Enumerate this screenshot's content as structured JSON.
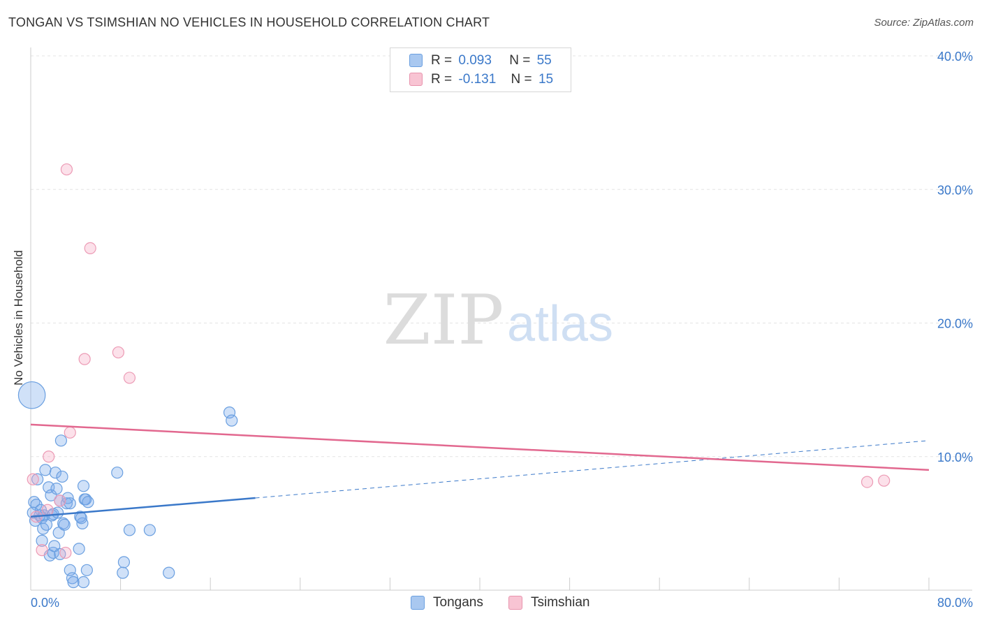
{
  "header": {
    "title": "TONGAN VS TSIMSHIAN NO VEHICLES IN HOUSEHOLD CORRELATION CHART",
    "source": "Source: ZipAtlas.com"
  },
  "watermark": {
    "zip": "ZIP",
    "atlas": "atlas"
  },
  "legend": {
    "rows": [
      {
        "r_label": "R =",
        "r_value": "0.093",
        "n_label": "N =",
        "n_value": "55",
        "color": "#a9c8f0",
        "border": "#6a9fe0"
      },
      {
        "r_label": "R =",
        "r_value": "-0.131",
        "n_label": "N =",
        "n_value": "15",
        "color": "#f8c4d3",
        "border": "#e893ad"
      }
    ]
  },
  "bottom_legend": [
    {
      "label": "Tongans",
      "color": "#a9c8f0",
      "border": "#6a9fe0"
    },
    {
      "label": "Tsimshian",
      "color": "#f8c4d3",
      "border": "#e893ad"
    }
  ],
  "colors": {
    "blue": "#3a78c9",
    "blue_fill": "rgba(120,170,235,0.35)",
    "blue_stroke": "#6a9fe0",
    "pink": "#e2688f",
    "pink_fill": "rgba(245,170,195,0.35)",
    "pink_stroke": "#ec9bb5",
    "grid": "#e3e3e3",
    "tick_label": "#3a78c9"
  },
  "chart_data": {
    "type": "scatter",
    "title": "TONGAN VS TSIMSHIAN NO VEHICLES IN HOUSEHOLD CORRELATION CHART",
    "xlabel": "",
    "ylabel": "No Vehicles in Household",
    "xlim": [
      0,
      80
    ],
    "ylim": [
      0,
      40
    ],
    "x_tick_labels": [
      "0.0%",
      "80.0%"
    ],
    "y_ticks": [
      10,
      20,
      30,
      40
    ],
    "y_tick_labels": [
      "10.0%",
      "20.0%",
      "30.0%",
      "40.0%"
    ],
    "grid": true,
    "legend_position": "top-center",
    "series": [
      {
        "name": "Tongans",
        "r": 0.093,
        "n": 55,
        "trend": {
          "x_start": 0.0,
          "y_start": 5.5,
          "x_solid_end": 20.0,
          "y_solid_end": 6.9,
          "x_end": 80.0,
          "y_end": 11.2
        },
        "points": [
          {
            "x": 0.1,
            "y": 14.6,
            "size": 2.4
          },
          {
            "x": 0.3,
            "y": 6.6
          },
          {
            "x": 0.5,
            "y": 6.4
          },
          {
            "x": 0.4,
            "y": 5.2
          },
          {
            "x": 0.6,
            "y": 8.3
          },
          {
            "x": 0.9,
            "y": 6.0
          },
          {
            "x": 1.0,
            "y": 5.4
          },
          {
            "x": 1.1,
            "y": 4.6
          },
          {
            "x": 1.2,
            "y": 5.6
          },
          {
            "x": 1.3,
            "y": 9.0
          },
          {
            "x": 1.4,
            "y": 4.9
          },
          {
            "x": 1.6,
            "y": 7.7
          },
          {
            "x": 1.7,
            "y": 2.6
          },
          {
            "x": 1.8,
            "y": 7.1
          },
          {
            "x": 1.9,
            "y": 5.6
          },
          {
            "x": 2.0,
            "y": 2.8
          },
          {
            "x": 2.1,
            "y": 3.3
          },
          {
            "x": 2.0,
            "y": 5.7
          },
          {
            "x": 2.2,
            "y": 8.8
          },
          {
            "x": 2.3,
            "y": 7.6
          },
          {
            "x": 2.4,
            "y": 5.8
          },
          {
            "x": 2.5,
            "y": 4.3
          },
          {
            "x": 2.6,
            "y": 2.7
          },
          {
            "x": 2.6,
            "y": 6.7
          },
          {
            "x": 2.7,
            "y": 11.2
          },
          {
            "x": 2.8,
            "y": 8.5
          },
          {
            "x": 2.9,
            "y": 5.0
          },
          {
            "x": 3.0,
            "y": 4.9
          },
          {
            "x": 3.2,
            "y": 6.5
          },
          {
            "x": 1.0,
            "y": 3.7
          },
          {
            "x": 3.3,
            "y": 6.9
          },
          {
            "x": 3.5,
            "y": 6.5
          },
          {
            "x": 3.5,
            "y": 1.5
          },
          {
            "x": 3.7,
            "y": 0.9
          },
          {
            "x": 3.8,
            "y": 0.6
          },
          {
            "x": 4.3,
            "y": 3.1
          },
          {
            "x": 4.6,
            "y": 5.0
          },
          {
            "x": 4.4,
            "y": 5.5
          },
          {
            "x": 4.5,
            "y": 5.4
          },
          {
            "x": 4.7,
            "y": 7.8
          },
          {
            "x": 4.7,
            "y": 0.6
          },
          {
            "x": 4.8,
            "y": 6.8
          },
          {
            "x": 4.9,
            "y": 6.8
          },
          {
            "x": 5.0,
            "y": 1.5
          },
          {
            "x": 5.1,
            "y": 6.6
          },
          {
            "x": 7.7,
            "y": 8.8
          },
          {
            "x": 8.2,
            "y": 1.3
          },
          {
            "x": 8.3,
            "y": 2.1
          },
          {
            "x": 8.8,
            "y": 4.5
          },
          {
            "x": 10.6,
            "y": 4.5
          },
          {
            "x": 12.3,
            "y": 1.3
          },
          {
            "x": 17.7,
            "y": 13.3
          },
          {
            "x": 17.9,
            "y": 12.7
          },
          {
            "x": 0.2,
            "y": 5.8
          },
          {
            "x": 0.8,
            "y": 5.6
          }
        ]
      },
      {
        "name": "Tsimshian",
        "r": -0.131,
        "n": 15,
        "trend": {
          "x_start": 0.0,
          "y_start": 12.4,
          "x_end": 80.0,
          "y_end": 9.0
        },
        "points": [
          {
            "x": 3.2,
            "y": 31.5
          },
          {
            "x": 5.3,
            "y": 25.6
          },
          {
            "x": 4.8,
            "y": 17.3
          },
          {
            "x": 7.8,
            "y": 17.8
          },
          {
            "x": 8.8,
            "y": 15.9
          },
          {
            "x": 3.5,
            "y": 11.8
          },
          {
            "x": 1.6,
            "y": 10.0
          },
          {
            "x": 0.2,
            "y": 8.3
          },
          {
            "x": 1.5,
            "y": 6.0
          },
          {
            "x": 0.5,
            "y": 5.5
          },
          {
            "x": 2.6,
            "y": 6.7
          },
          {
            "x": 1.0,
            "y": 3.0
          },
          {
            "x": 3.1,
            "y": 2.8
          },
          {
            "x": 74.5,
            "y": 8.1
          },
          {
            "x": 76.0,
            "y": 8.2
          }
        ]
      }
    ]
  }
}
